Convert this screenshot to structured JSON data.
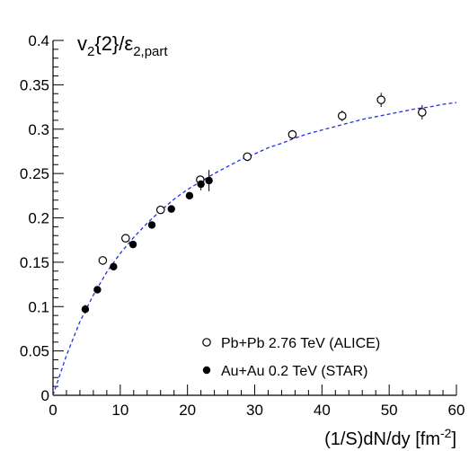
{
  "chart_data": {
    "type": "scatter",
    "title_parts": {
      "main": "v",
      "sub1": "2",
      "middle": "{2}/ε",
      "sub2": "2,part"
    },
    "xlabel_parts": {
      "main": "(1/S)dN/dy [fm",
      "sup": "-2",
      "end": "]"
    },
    "ylabel": "",
    "xlim": [
      0,
      60
    ],
    "ylim": [
      0,
      0.4
    ],
    "xticks": [
      0,
      10,
      20,
      30,
      40,
      50,
      60
    ],
    "xtick_labels": [
      "0",
      "10",
      "20",
      "30",
      "40",
      "50",
      "60"
    ],
    "yticks": [
      0,
      0.05,
      0.1,
      0.15,
      0.2,
      0.25,
      0.3,
      0.35,
      0.4
    ],
    "ytick_labels": [
      "0",
      "0.05",
      "0.1",
      "0.15",
      "0.2",
      "0.25",
      "0.3",
      "0.35",
      "0.4"
    ],
    "grid": false,
    "legend_position": "bottom-right",
    "series": [
      {
        "name": "Pb+Pb 2.76 TeV (ALICE)",
        "marker": "open-circle",
        "color": "#000000",
        "x": [
          7.4,
          10.8,
          16.0,
          21.9,
          28.9,
          35.6,
          43.0,
          48.8,
          54.9
        ],
        "y": [
          0.152,
          0.177,
          0.209,
          0.243,
          0.269,
          0.294,
          0.315,
          0.333,
          0.319
        ],
        "yerr": [
          0.003,
          0.003,
          0.003,
          0.004,
          0.004,
          0.005,
          0.006,
          0.008,
          0.008
        ]
      },
      {
        "name": "Au+Au 0.2 TeV (STAR)",
        "marker": "filled-circle",
        "color": "#000000",
        "x": [
          4.8,
          6.6,
          9.0,
          11.9,
          14.7,
          17.6,
          20.3,
          22.0,
          23.2
        ],
        "y": [
          0.097,
          0.119,
          0.145,
          0.17,
          0.192,
          0.21,
          0.225,
          0.238,
          0.242
        ],
        "yerr": [
          0.005,
          0.004,
          0.003,
          0.003,
          0.003,
          0.003,
          0.004,
          0.007,
          0.012
        ]
      }
    ],
    "fit_curve": {
      "style": "dashed",
      "color": "#2233dd",
      "x": [
        0,
        2,
        4,
        6,
        8,
        10,
        12,
        14,
        16,
        18,
        20,
        22,
        24,
        26,
        28,
        30,
        32,
        34,
        36,
        38,
        40,
        42,
        44,
        46,
        48,
        50,
        52,
        54,
        56,
        58,
        60
      ],
      "y": [
        0.0,
        0.045,
        0.083,
        0.113,
        0.139,
        0.16,
        0.178,
        0.194,
        0.208,
        0.221,
        0.232,
        0.241,
        0.25,
        0.258,
        0.266,
        0.272,
        0.279,
        0.284,
        0.29,
        0.295,
        0.299,
        0.303,
        0.307,
        0.311,
        0.314,
        0.317,
        0.32,
        0.323,
        0.325,
        0.328,
        0.33
      ]
    }
  }
}
